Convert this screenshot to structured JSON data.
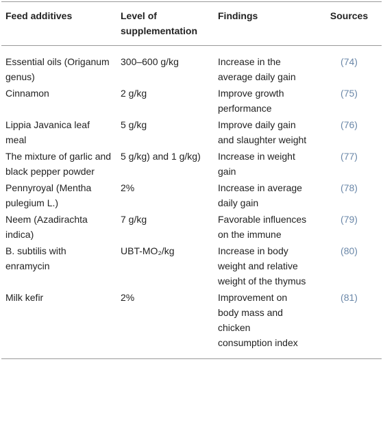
{
  "table": {
    "header": [
      "Feed additives",
      "Level of supplementation",
      "Findings",
      "Sources"
    ],
    "rows": [
      [
        "Essential oils (Origanum genus)",
        "300–600 g/kg",
        "Increase in the average daily gain",
        "(74)"
      ],
      [
        "Cinnamon",
        "2 g/kg",
        "Improve growth performance",
        "(75)"
      ],
      [
        "Lippia Javanica leaf meal",
        "5 g/kg",
        "Improve daily gain and slaughter weight",
        "(76)"
      ],
      [
        "The mixture of garlic and black pepper powder",
        "5 g/kg) and 1 g/kg)",
        "Increase in weight gain",
        "(77)"
      ],
      [
        "Pennyroyal (Mentha pulegium L.)",
        "2%",
        "Increase in average daily gain",
        "(78)"
      ],
      [
        "Neem (Azadirachta indica)",
        "7 g/kg",
        "Favorable influences on the immune",
        "(79)"
      ],
      [
        "B. subtilis with enramycin",
        "UBT-MO₂/kg",
        "Increase in body weight and relative weight of the thymus",
        "(80)"
      ],
      [
        "Milk kefir",
        "2%",
        "Improvement on body mass and chicken consumption index",
        "(81)"
      ]
    ]
  }
}
